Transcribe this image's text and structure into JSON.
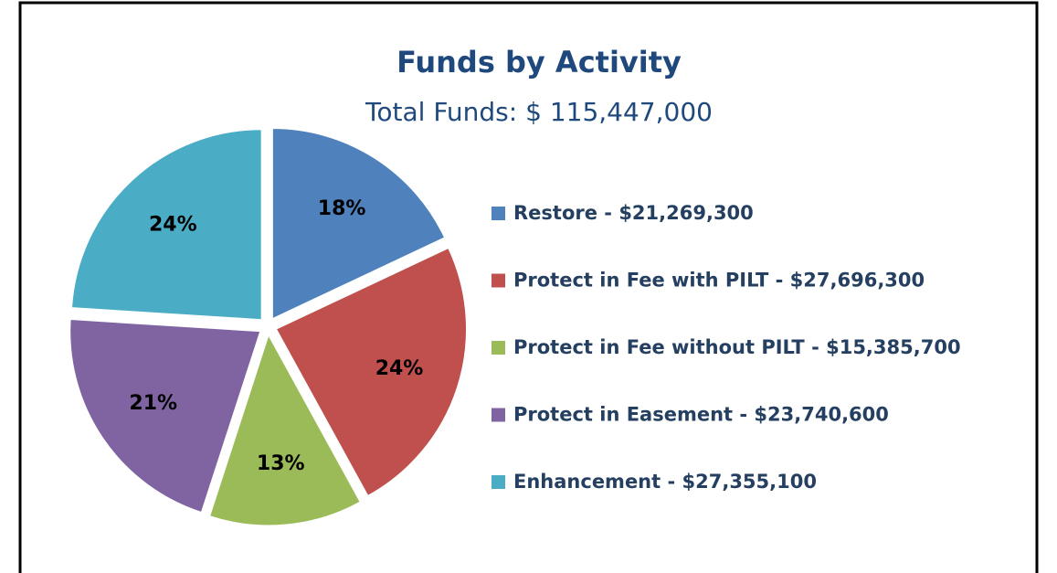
{
  "chart_data": {
    "type": "pie",
    "title": "Funds by Activity",
    "subtitle": "Total Funds: $ 115,447,000",
    "categories": [
      "Restore - $21,269,300",
      "Protect in Fee with PILT - $27,696,300",
      "Protect in Fee without PILT - $15,385,700",
      "Protect in Easement - $23,740,600",
      "Enhancement - $27,355,100"
    ],
    "values": [
      18,
      24,
      13,
      21,
      24
    ],
    "value_labels": [
      "18%",
      "24%",
      "13%",
      "21%",
      "24%"
    ],
    "colors": [
      "#4f81bd",
      "#c0504d",
      "#9bbb59",
      "#8064a2",
      "#4bacc6"
    ],
    "legend": "right"
  }
}
